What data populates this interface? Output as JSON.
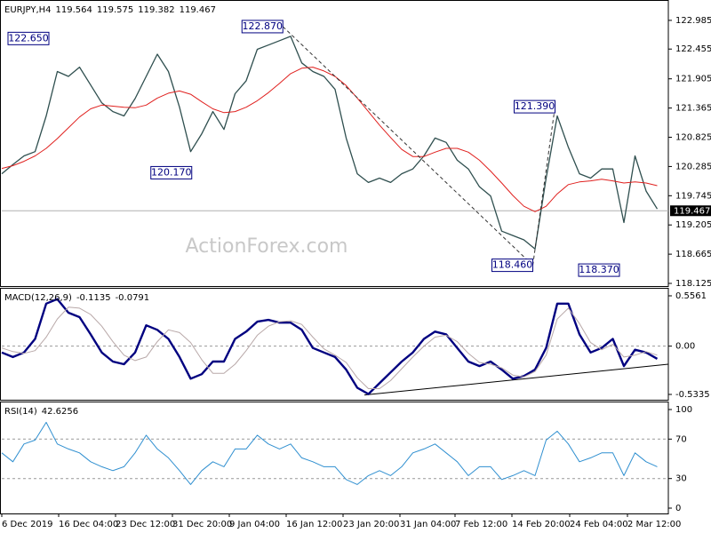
{
  "chart_data": [
    {
      "type": "line",
      "title": "EURJPY,H4",
      "quote": [
        119.564,
        119.575,
        119.382,
        119.467
      ],
      "last_price": 119.467,
      "watermark": "ActionForex.com",
      "xlim": [
        0,
        60
      ],
      "ylim": [
        118.076,
        123.345
      ],
      "yticks": [
        122.985,
        122.455,
        121.905,
        121.365,
        120.825,
        120.285,
        119.745,
        119.205,
        118.665,
        118.125
      ],
      "series": [
        {
          "color": "#2f4f4f",
          "width": 1.3,
          "values": [
            120.15,
            120.32,
            120.48,
            120.56,
            121.22,
            122.04,
            121.95,
            122.12,
            121.79,
            121.46,
            121.3,
            121.22,
            121.54,
            121.95,
            122.36,
            122.04,
            121.38,
            120.56,
            120.89,
            121.3,
            120.97,
            121.63,
            121.87,
            122.45,
            122.53,
            122.61,
            122.69,
            122.2,
            122.04,
            121.95,
            121.71,
            120.81,
            120.15,
            119.99,
            120.07,
            119.99,
            120.15,
            120.24,
            120.48,
            120.81,
            120.73,
            120.4,
            120.24,
            119.91,
            119.74,
            119.09,
            119.01,
            118.93,
            118.76,
            120.07,
            121.22,
            120.64,
            120.15,
            120.07,
            120.24,
            120.24,
            119.25,
            120.48,
            119.83,
            119.5
          ]
        },
        {
          "color": "#e0201e",
          "width": 1,
          "values": [
            120.25,
            120.3,
            120.38,
            120.48,
            120.62,
            120.8,
            121.0,
            121.2,
            121.35,
            121.42,
            121.4,
            121.38,
            121.37,
            121.42,
            121.55,
            121.64,
            121.68,
            121.62,
            121.48,
            121.35,
            121.28,
            121.3,
            121.38,
            121.5,
            121.65,
            121.82,
            122.0,
            122.1,
            122.12,
            122.05,
            121.95,
            121.78,
            121.55,
            121.3,
            121.05,
            120.82,
            120.6,
            120.47,
            120.47,
            120.55,
            120.62,
            120.62,
            120.55,
            120.4,
            120.2,
            119.98,
            119.75,
            119.55,
            119.45,
            119.55,
            119.78,
            119.95,
            120.0,
            120.02,
            120.05,
            120.02,
            119.98,
            120.0,
            119.98,
            119.93
          ]
        }
      ],
      "annotations": [
        {
          "label": "122.650",
          "value": 122.65,
          "x": 4.24
        },
        {
          "label": "120.170",
          "value": 120.17,
          "x": 17.1
        },
        {
          "label": "122.870",
          "value": 122.87,
          "x": 25.3
        },
        {
          "label": "118.460",
          "value": 118.46,
          "x": 47.8
        },
        {
          "label": "121.390",
          "value": 121.39,
          "x": 49.8
        },
        {
          "label": "118.370",
          "value": 118.37,
          "x": 55.6
        }
      ]
    },
    {
      "type": "line",
      "title": "MACD(12,26,9)",
      "readout": [
        -0.1135,
        -0.0791
      ],
      "xlim": [
        0,
        60
      ],
      "ylim": [
        -0.5924,
        0.6346
      ],
      "yticks": [
        0.5561,
        {
          "value": 0,
          "label": "0.00"
        },
        -0.5335
      ],
      "levels": [
        0
      ],
      "series": [
        {
          "color": "#000080",
          "width": 2.4,
          "values": [
            -0.07,
            -0.12,
            -0.07,
            0.08,
            0.47,
            0.52,
            0.37,
            0.32,
            0.13,
            -0.07,
            -0.17,
            -0.2,
            -0.07,
            0.23,
            0.18,
            0.08,
            -0.12,
            -0.36,
            -0.31,
            -0.17,
            -0.17,
            0.08,
            0.16,
            0.27,
            0.29,
            0.26,
            0.26,
            0.18,
            -0.02,
            -0.07,
            -0.12,
            -0.26,
            -0.46,
            -0.53,
            -0.41,
            -0.29,
            -0.17,
            -0.07,
            0.08,
            0.16,
            0.13,
            -0.02,
            -0.17,
            -0.22,
            -0.17,
            -0.26,
            -0.36,
            -0.33,
            -0.26,
            -0.02,
            0.47,
            0.47,
            0.13,
            -0.07,
            -0.02,
            0.08,
            -0.22,
            -0.04,
            -0.07,
            -0.14
          ]
        },
        {
          "color": "#b8a8a8",
          "width": 1,
          "values": [
            -0.02,
            -0.06,
            -0.08,
            -0.05,
            0.1,
            0.3,
            0.43,
            0.42,
            0.35,
            0.22,
            0.05,
            -0.1,
            -0.16,
            -0.12,
            0.05,
            0.18,
            0.15,
            0.04,
            -0.15,
            -0.3,
            -0.3,
            -0.2,
            -0.05,
            0.12,
            0.22,
            0.27,
            0.28,
            0.24,
            0.1,
            -0.03,
            -0.1,
            -0.18,
            -0.35,
            -0.47,
            -0.47,
            -0.38,
            -0.25,
            -0.12,
            0.0,
            0.1,
            0.12,
            0.05,
            -0.08,
            -0.18,
            -0.2,
            -0.24,
            -0.32,
            -0.34,
            -0.28,
            -0.1,
            0.3,
            0.42,
            0.25,
            0.04,
            -0.04,
            0.02,
            -0.12,
            -0.1,
            -0.06,
            -0.1
          ]
        }
      ],
      "trendline": {
        "x": [
          32.64,
          60
        ],
        "y": [
          -0.54,
          -0.2
        ]
      }
    },
    {
      "type": "line",
      "title": "RSI(14)",
      "readout": [
        42.6256
      ],
      "xlim": [
        0,
        60
      ],
      "ylim": [
        -5.4,
        107.2
      ],
      "yticks": [
        100,
        70,
        30,
        0
      ],
      "levels": [
        70,
        30
      ],
      "series": [
        {
          "color": "#2f8fd0",
          "width": 1,
          "values": [
            56,
            47,
            65,
            69,
            87,
            65,
            60,
            56,
            47,
            42,
            38,
            42,
            56,
            74,
            60,
            51,
            38,
            24,
            38,
            47,
            42,
            60,
            60,
            74,
            65,
            60,
            65,
            51,
            47,
            42,
            42,
            29,
            24,
            33,
            38,
            33,
            42,
            56,
            60,
            65,
            56,
            47,
            33,
            42,
            42,
            29,
            33,
            38,
            33,
            69,
            78,
            65,
            47,
            51,
            56,
            56,
            33,
            56,
            47,
            42
          ]
        }
      ],
      "xticks": [
        {
          "value": 0,
          "label": "6 Dec 2019"
        },
        {
          "value": 5.12,
          "label": "16 Dec 04:00"
        },
        {
          "value": 10.24,
          "label": "23 Dec 12:00"
        },
        {
          "value": 15.36,
          "label": "31 Dec 20:00"
        },
        {
          "value": 20.48,
          "label": "9 Jan 04:00"
        },
        {
          "value": 25.6,
          "label": "16 Jan 12:00"
        },
        {
          "value": 30.72,
          "label": "23 Jan 20:00"
        },
        {
          "value": 35.84,
          "label": "31 Jan 04:00"
        },
        {
          "value": 40.8,
          "label": "7 Feb 12:00"
        },
        {
          "value": 45.92,
          "label": "14 Feb 20:00"
        },
        {
          "value": 51.12,
          "label": "24 Feb 04:00"
        },
        {
          "value": 56.32,
          "label": "2 Mar 12:00"
        }
      ]
    }
  ]
}
